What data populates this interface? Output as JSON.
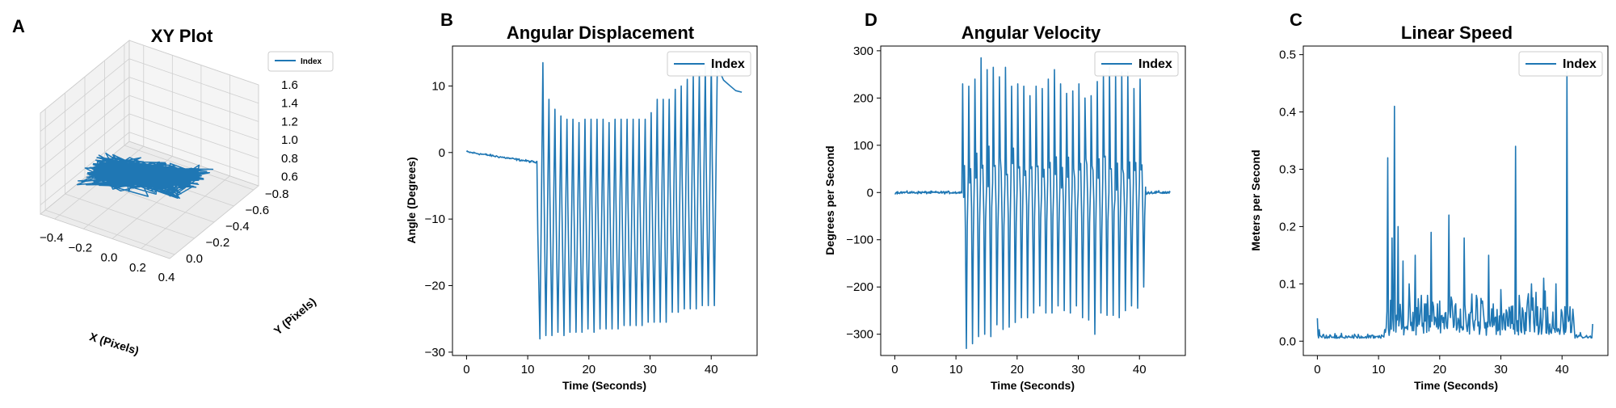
{
  "chart_data": [
    {
      "panel_label": "A",
      "type": "line3d",
      "title": "XY Plot",
      "xlabel": "X (Pixels)",
      "ylabel": "Y (Pixels)",
      "zlabel": "",
      "legend": "Index",
      "legend_position": "top-right",
      "xticks": [
        -0.4,
        -0.2,
        0.0,
        0.2,
        0.4
      ],
      "xtick_labels": [
        "−0.4",
        "−0.2",
        "0.0",
        "0.2",
        "0.4"
      ],
      "yticks": [
        0.0,
        -0.2,
        -0.4,
        -0.6,
        -0.8
      ],
      "ytick_labels": [
        "0.0",
        "−0.2",
        "−0.4",
        "−0.6",
        "−0.8"
      ],
      "zticks": [
        0.6,
        0.8,
        1.0,
        1.2,
        1.4,
        1.6
      ],
      "ztick_labels": [
        "0.6",
        "0.8",
        "1.0",
        "1.2",
        "1.4",
        "1.6"
      ],
      "xlim": [
        -0.5,
        0.4
      ],
      "ylim": [
        -0.85,
        0.05
      ],
      "zlim": [
        0.5,
        1.6
      ],
      "description_values": {
        "x_range": [
          -0.4,
          0.35
        ],
        "y_range": [
          -0.6,
          0.0
        ],
        "z_range": [
          0.6,
          1.35
        ]
      }
    },
    {
      "panel_label": "B",
      "type": "line",
      "title": "Angular Displacement",
      "xlabel": "Time (Seconds)",
      "ylabel": "Angle (Degrees)",
      "legend": "Index",
      "legend_position": "top-right",
      "xlim": [
        -2.3,
        47.5
      ],
      "ylim": [
        -30.5,
        16
      ],
      "xticks": [
        0,
        10,
        20,
        30,
        40
      ],
      "xtick_labels": [
        "0",
        "10",
        "20",
        "30",
        "40"
      ],
      "yticks": [
        10,
        0,
        -10,
        -20,
        -30
      ],
      "ytick_labels": [
        "10",
        "0",
        "−10",
        "−20",
        "−30"
      ],
      "segments": {
        "baseline": {
          "t_start": 0,
          "t_end": 11.5,
          "start_value": 0.1,
          "end_value": -1.5
        },
        "oscillation": {
          "t_start": 11.5,
          "t_end": 41,
          "cycles": 30,
          "peaks": [
            -1.5,
            13.5,
            8,
            6.5,
            5.5,
            5,
            5,
            4.5,
            5,
            5,
            5,
            5,
            4.5,
            5,
            5,
            5,
            5,
            5,
            5,
            6,
            8,
            8,
            8,
            9.5,
            10,
            11,
            11.5,
            12,
            13,
            13.5,
            13.5
          ],
          "troughs": [
            -28,
            -27.5,
            -27.5,
            -27,
            -27.5,
            -27,
            -27,
            -27,
            -26.5,
            -27,
            -26.5,
            -26.5,
            -26.5,
            -26.5,
            -26,
            -26,
            -26,
            -26,
            -25.5,
            -25.5,
            -25.5,
            -25.5,
            -24,
            -24,
            -23.5,
            -23.5,
            -23.5,
            -23,
            -23,
            -23
          ]
        },
        "tail": {
          "t_start": 41,
          "t_end": 45,
          "values": [
            13,
            11,
            10,
            9.5,
            9
          ]
        }
      }
    },
    {
      "panel_label": "D",
      "type": "line",
      "title": "Angular Velocity",
      "xlabel": "Time (Seconds)",
      "ylabel": "Degrees per Second",
      "legend": "Index",
      "legend_position": "top-right",
      "xlim": [
        -2.3,
        47.5
      ],
      "ylim": [
        -345,
        310
      ],
      "xticks": [
        0,
        10,
        20,
        30,
        40
      ],
      "xtick_labels": [
        "0",
        "10",
        "20",
        "30",
        "40"
      ],
      "yticks": [
        300,
        200,
        100,
        0,
        -100,
        -200,
        -300
      ],
      "ytick_labels": [
        "300",
        "200",
        "100",
        "0",
        "−100",
        "−200",
        "−300"
      ],
      "segments": {
        "baseline": {
          "t_start": 0,
          "t_end": 11,
          "value": 0,
          "noise": 4
        },
        "oscillation": {
          "t_start": 11,
          "t_end": 41,
          "cycles": 30,
          "peaks": [
            230,
            225,
            240,
            285,
            260,
            265,
            245,
            265,
            225,
            230,
            225,
            205,
            225,
            220,
            240,
            260,
            230,
            210,
            215,
            230,
            200,
            205,
            235,
            250,
            265,
            250,
            255,
            255,
            220,
            240
          ],
          "troughs": [
            -330,
            -320,
            -305,
            -300,
            -305,
            -280,
            -290,
            -285,
            -275,
            -265,
            -265,
            -255,
            -240,
            -255,
            -255,
            -240,
            -250,
            -255,
            -240,
            -265,
            -270,
            -300,
            -255,
            -260,
            -260,
            -265,
            -250,
            -240,
            -245,
            -200
          ]
        },
        "tail": {
          "t_start": 41,
          "t_end": 45,
          "value": 0,
          "noise": 5
        }
      }
    },
    {
      "panel_label": "C",
      "type": "line",
      "title": "Linear Speed",
      "xlabel": "Time (Seconds)",
      "ylabel": "Meters per Second",
      "legend": "Index",
      "legend_position": "top-right",
      "xlim": [
        -2.3,
        47.5
      ],
      "ylim": [
        -0.025,
        0.515
      ],
      "xticks": [
        0,
        10,
        20,
        30,
        40
      ],
      "xtick_labels": [
        "0",
        "10",
        "20",
        "30",
        "40"
      ],
      "yticks": [
        0.5,
        0.4,
        0.3,
        0.2,
        0.1,
        0.0
      ],
      "ytick_labels": [
        "0.5",
        "0.4",
        "0.3",
        "0.2",
        "0.1",
        "0.0"
      ],
      "points": [
        [
          0,
          0.04
        ],
        [
          0.3,
          0.02
        ],
        [
          1,
          0.012
        ],
        [
          3,
          0.005
        ],
        [
          5,
          0.008
        ],
        [
          8,
          0.005
        ],
        [
          10,
          0.006
        ],
        [
          11,
          0.02
        ],
        [
          11.5,
          0.32
        ],
        [
          12.2,
          0.18
        ],
        [
          12.6,
          0.41
        ],
        [
          13.2,
          0.2
        ],
        [
          14,
          0.14
        ],
        [
          15,
          0.1
        ],
        [
          16,
          0.15
        ],
        [
          17,
          0.08
        ],
        [
          18,
          0.08
        ],
        [
          18.6,
          0.19
        ],
        [
          19,
          0.06
        ],
        [
          20,
          0.07
        ],
        [
          21,
          0.05
        ],
        [
          21.5,
          0.22
        ],
        [
          22,
          0.07
        ],
        [
          23,
          0.04
        ],
        [
          24,
          0.18
        ],
        [
          25,
          0.05
        ],
        [
          26,
          0.08
        ],
        [
          27,
          0.07
        ],
        [
          28,
          0.15
        ],
        [
          29,
          0.04
        ],
        [
          30,
          0.09
        ],
        [
          31,
          0.05
        ],
        [
          32.4,
          0.34
        ],
        [
          33,
          0.08
        ],
        [
          34,
          0.05
        ],
        [
          35,
          0.1
        ],
        [
          36,
          0.06
        ],
        [
          37,
          0.11
        ],
        [
          38,
          0.03
        ],
        [
          39,
          0.1
        ],
        [
          40,
          0.05
        ],
        [
          40.8,
          0.47
        ],
        [
          41.3,
          0.06
        ],
        [
          42,
          0.02
        ],
        [
          43,
          0.015
        ],
        [
          44,
          0.01
        ],
        [
          45,
          0.03
        ]
      ]
    }
  ]
}
